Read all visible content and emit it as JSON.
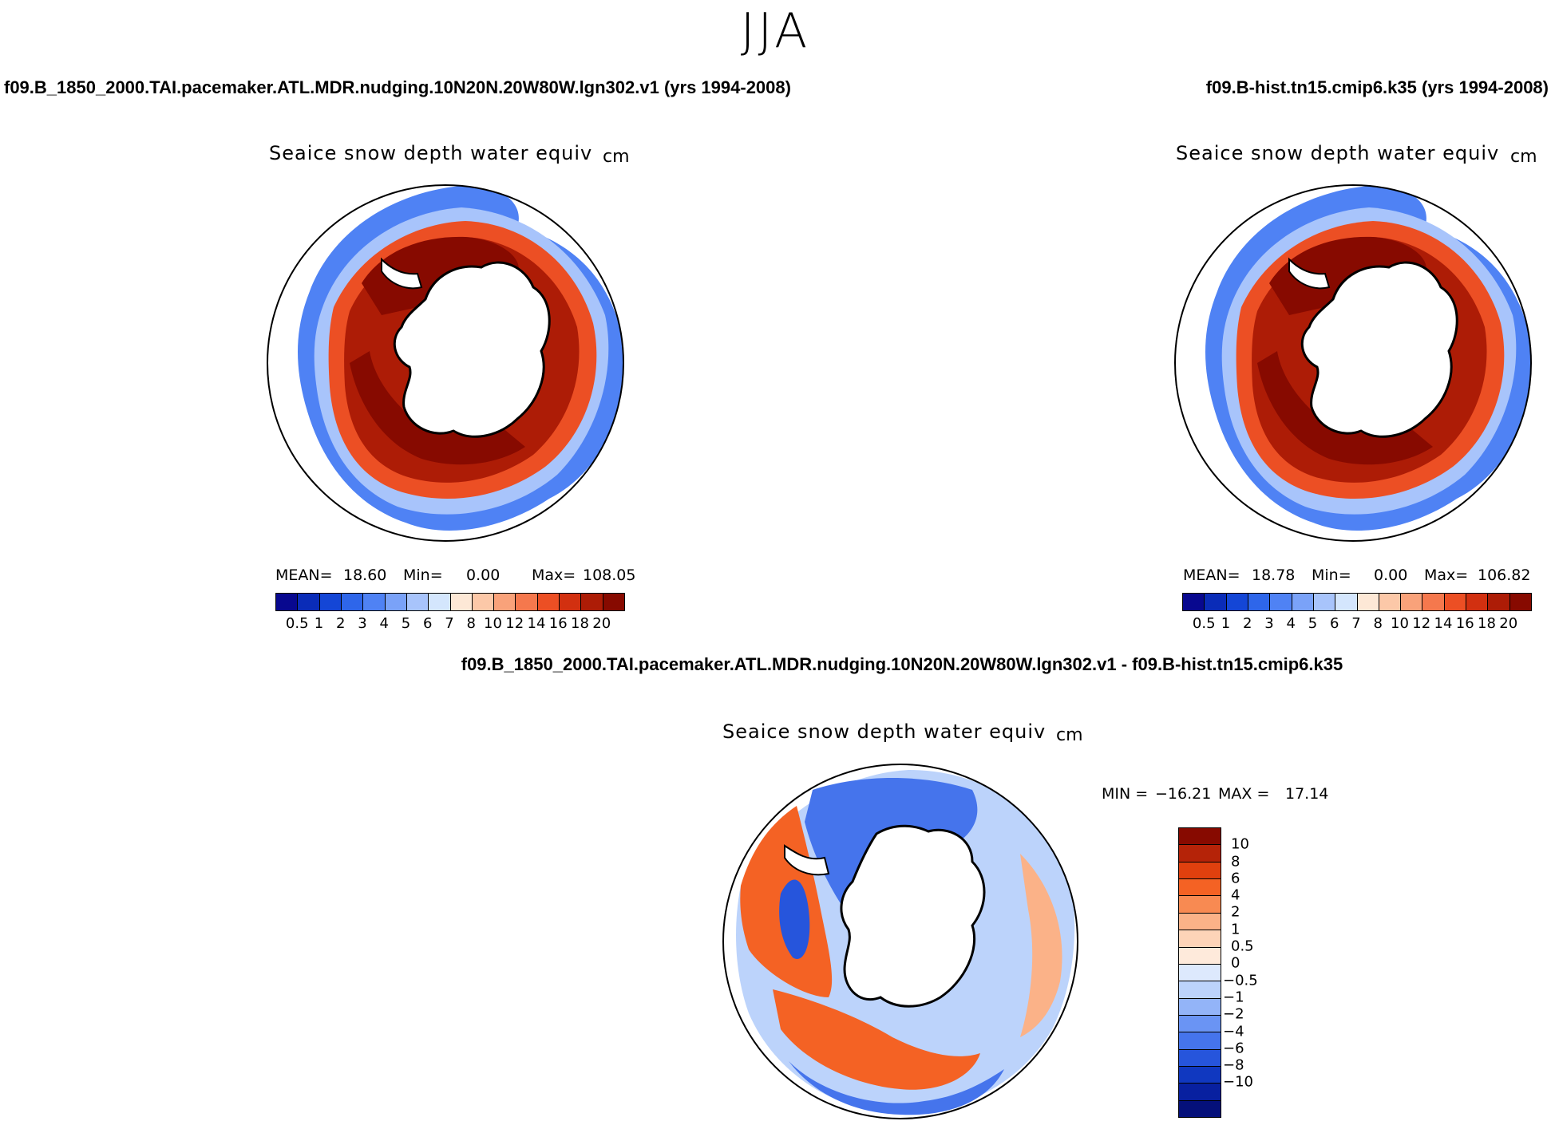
{
  "season": "JJA",
  "left_run_title": "f09.B_1850_2000.TAI.pacemaker.ATL.MDR.nudging.10N20N.20W80W.lgn302.v1 (yrs 1994-2008)",
  "right_run_title": "f09.B-hist.tn15.cmip6.k35 (yrs 1994-2008)",
  "diff_title": "f09.B_1850_2000.TAI.pacemaker.ATL.MDR.nudging.10N20N.20W80W.lgn302.v1 - f09.B-hist.tn15.cmip6.k35",
  "panels": {
    "left": {
      "title": "Seaice snow depth water equiv",
      "units": "cm",
      "mean_label": "MEAN=",
      "mean": "18.60",
      "min_label": "Min=",
      "min": "0.00",
      "max_label": "Max=",
      "max": "108.05"
    },
    "right": {
      "title": "Seaice snow depth water equiv",
      "units": "cm",
      "mean_label": "MEAN=",
      "mean": "18.78",
      "min_label": "Min=",
      "min": "0.00",
      "max_label": "Max=",
      "max": "106.82"
    },
    "diff": {
      "title": "Seaice snow depth water equiv",
      "units": "cm",
      "min_label": "MIN =",
      "min": "−16.21",
      "max_label": "MAX =",
      "max": "17.14"
    }
  },
  "abs_colorbar": {
    "colors": [
      "#08088f",
      "#0a2cb8",
      "#1446d6",
      "#2e66ea",
      "#4f82f4",
      "#7aa2f8",
      "#a8c4fb",
      "#d4e6fd",
      "#fde8d6",
      "#fcc8a8",
      "#f9a27a",
      "#f5784d",
      "#ec4f24",
      "#d23010",
      "#ad1c06",
      "#870a00"
    ],
    "labels": [
      "0.5",
      "1",
      "2",
      "3",
      "4",
      "5",
      "6",
      "7",
      "8",
      "10",
      "12",
      "14",
      "16",
      "18",
      "20"
    ]
  },
  "diff_colorbar": {
    "colors": [
      "#870a00",
      "#b52308",
      "#e0400e",
      "#f46224",
      "#f88a52",
      "#fbb288",
      "#fdd4b8",
      "#feeadb",
      "#dde9fd",
      "#bcd3fb",
      "#93b4f8",
      "#6a94f4",
      "#4574ec",
      "#2655dc",
      "#1038c0",
      "#0820a0",
      "#05107a"
    ],
    "labels": [
      "10",
      "8",
      "6",
      "4",
      "2",
      "1",
      "0.5",
      "0",
      "−0.5",
      "−1",
      "−2",
      "−4",
      "−6",
      "−8",
      "−10"
    ]
  }
}
